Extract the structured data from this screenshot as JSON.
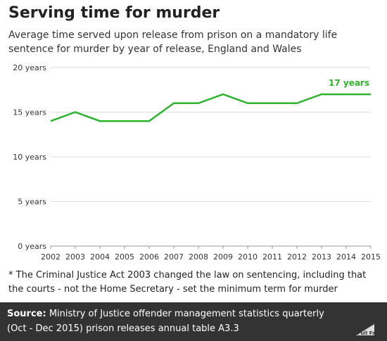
{
  "header": {
    "title": "Serving time for murder",
    "subtitle": "Average time served upon release from prison on a mandatory life sentence for murder by year of release, England and Wales"
  },
  "chart_data": {
    "type": "line",
    "title": "Serving time for murder",
    "subtitle": "Average time served upon release from prison on a mandatory life sentence for murder by year of release, England and Wales",
    "xlabel": "",
    "ylabel": "",
    "x": [
      2002,
      2003,
      2004,
      2005,
      2006,
      2007,
      2008,
      2009,
      2010,
      2011,
      2012,
      2013,
      2014,
      2015
    ],
    "x_tick_labels": [
      "2002",
      "2003",
      "2004",
      "2005",
      "2006",
      "2007",
      "2008",
      "2009",
      "2010",
      "2011",
      "2012",
      "2013",
      "2014",
      "2015"
    ],
    "series": [
      {
        "values": [
          14,
          15,
          14,
          14,
          14,
          16,
          16,
          17,
          16,
          16,
          16,
          17,
          17,
          17
        ],
        "color": "#2db32d"
      }
    ],
    "ylim": [
      0,
      20
    ],
    "y_ticks": [
      0,
      5,
      10,
      15,
      20
    ],
    "y_tick_labels": [
      "0 years",
      "5 years",
      "10 years",
      "15 years",
      "20 years"
    ],
    "annotations": [
      {
        "text": "17 years",
        "x": 2015,
        "y": 17
      }
    ],
    "grid": "horizontal"
  },
  "footnote": "* The Criminal Justice Act 2003 changed the law on sentencing, including that the courts - not the Home Secretary - set the minimum term for murder",
  "source": {
    "label": "Source:",
    "text": "Ministry of Justice offender management statistics quarterly (Oct - Dec 2015) prison releases annual table A3.3",
    "brand": "Full Fact"
  },
  "colors": {
    "line": "#2db32d",
    "grid": "#dddddd",
    "source_bg": "#333333"
  }
}
